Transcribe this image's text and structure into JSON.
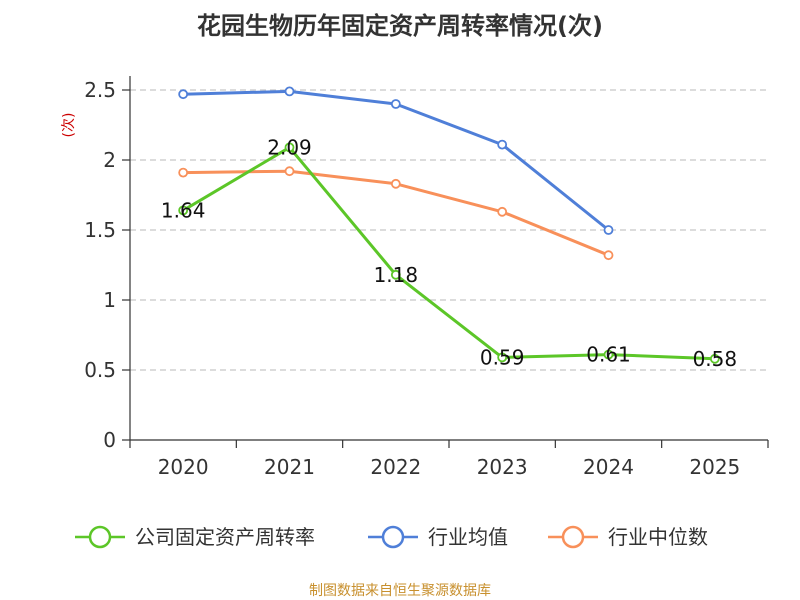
{
  "chart_data": {
    "type": "line",
    "title": "花园生物历年固定资产周转率情况(次)",
    "ylabel": "(次)",
    "xlabel": "",
    "categories": [
      "2020",
      "2021",
      "2022",
      "2023",
      "2024",
      "2025"
    ],
    "ylim": [
      0,
      2.5
    ],
    "yticks": [
      "0",
      "0.5",
      "1",
      "1.5",
      "2",
      "2.5"
    ],
    "grid": true,
    "legend_position": "bottom",
    "series": [
      {
        "name": "公司固定资产周转率",
        "color": "#5cc628",
        "values": [
          1.64,
          2.09,
          1.18,
          0.59,
          0.61,
          0.58
        ],
        "labels": [
          "1.64",
          "2.09",
          "1.18",
          "0.59",
          "0.61",
          "0.58"
        ]
      },
      {
        "name": "行业均值",
        "color": "#4f7fd8",
        "values": [
          2.47,
          2.49,
          2.4,
          2.11,
          1.5,
          null
        ]
      },
      {
        "name": "行业中位数",
        "color": "#f8905a",
        "values": [
          1.91,
          1.92,
          1.83,
          1.63,
          1.32,
          null
        ]
      }
    ],
    "source": "制图数据来自恒生聚源数据库",
    "source_color": "#c8902e",
    "ylabel_color": "#cc0000"
  }
}
